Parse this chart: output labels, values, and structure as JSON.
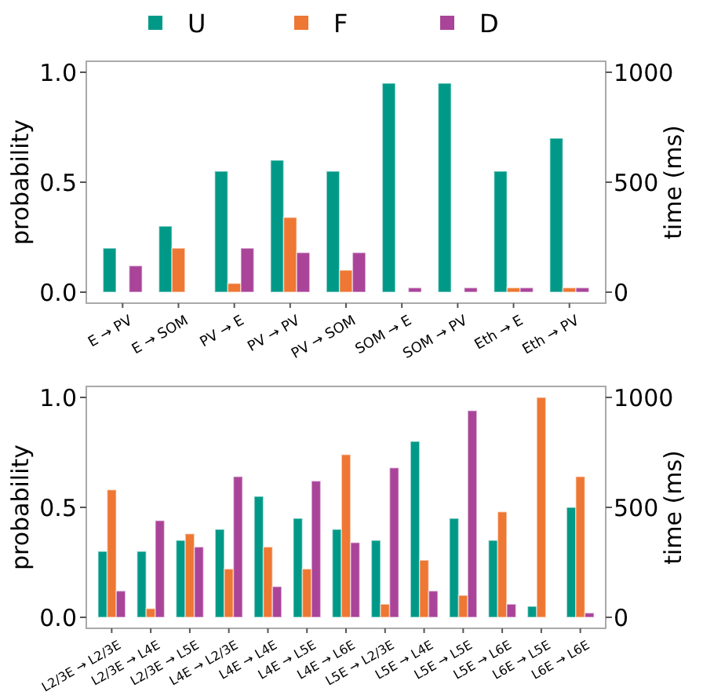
{
  "chart_data": [
    {
      "type": "bar",
      "ylabel": "probability",
      "y2label": "time (ms)",
      "legend": "top",
      "categories": [
        "E → PV",
        "E → SOM",
        "PV → E",
        "PV → PV",
        "PV → SOM",
        "SOM → E",
        "SOM → PV",
        "Eth → E",
        "Eth → PV"
      ],
      "series": [
        {
          "name": "U",
          "color": "#009988",
          "values": [
            0.2,
            0.3,
            0.55,
            0.6,
            0.55,
            0.95,
            0.95,
            0.55,
            0.7
          ]
        },
        {
          "name": "F",
          "color": "#ee7733",
          "values": [
            0,
            0.2,
            0.04,
            0.34,
            0.1,
            0,
            0,
            0.02,
            0.02
          ]
        },
        {
          "name": "D",
          "color": "#aa4499",
          "values": [
            0.12,
            0,
            0.2,
            0.18,
            0.18,
            0.02,
            0.02,
            0.02,
            0.02
          ]
        }
      ],
      "ylim": [
        -0.05,
        1.05
      ],
      "yticks": [
        {
          "value": 0,
          "label": "0.0"
        },
        {
          "value": 0.5,
          "label": "0.5"
        },
        {
          "value": 1,
          "label": "1.0"
        }
      ],
      "y2lim": [
        -50,
        1050
      ],
      "y2ticks": [
        0,
        500,
        1000
      ]
    },
    {
      "type": "bar",
      "ylabel": "probability",
      "y2label": "time (ms)",
      "legend": false,
      "categories": [
        "L2/3E → L2/3E",
        "L2/3E → L4E",
        "L2/3E → L5E",
        "L4E → L2/3E",
        "L4E → L4E",
        "L4E → L5E",
        "L4E → L6E",
        "L5E → L2/3E",
        "L5E → L4E",
        "L5E → L5E",
        "L5E → L6E",
        "L6E → L5E",
        "L6E → L6E"
      ],
      "series": [
        {
          "color": "#009988",
          "values": [
            0.3,
            0.3,
            0.35,
            0.4,
            0.55,
            0.45,
            0.4,
            0.35,
            0.8,
            0.45,
            0.35,
            0.05,
            0.5
          ]
        },
        {
          "color": "#ee7733",
          "values": [
            0.58,
            0.04,
            0.38,
            0.22,
            0.32,
            0.22,
            0.74,
            0.06,
            0.26,
            0.1,
            0.48,
            1.0,
            0.64
          ]
        },
        {
          "color": "#aa4499",
          "values": [
            0.12,
            0.44,
            0.32,
            0.64,
            0.14,
            0.62,
            0.34,
            0.68,
            0.12,
            0.94,
            0.06,
            0,
            0.02
          ]
        }
      ],
      "ylim": [
        -0.05,
        1.05
      ],
      "yticks": [
        {
          "value": 0,
          "label": "0.0"
        },
        {
          "value": 0.5,
          "label": "0.5"
        },
        {
          "value": 1,
          "label": "1.0"
        }
      ],
      "y2lim": [
        -50,
        1050
      ],
      "y2ticks": [
        0,
        500,
        1000
      ]
    }
  ]
}
